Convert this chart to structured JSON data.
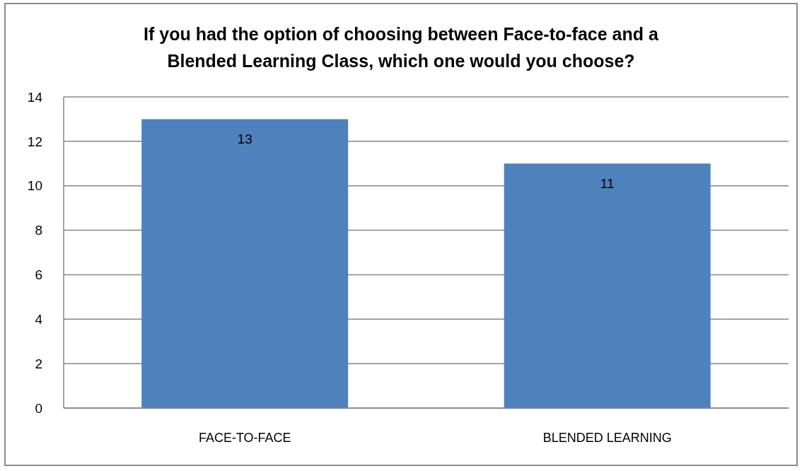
{
  "chart_data": {
    "type": "bar",
    "title": "If you had the option of choosing between Face-to-face and a Blended Learning Class, which one would you choose?",
    "categories": [
      "FACE-TO-FACE",
      "BLENDED LEARNING"
    ],
    "values": [
      13,
      11
    ],
    "color": "#4f81bd",
    "ylim": [
      0,
      14
    ],
    "yticks": [
      0,
      2,
      4,
      6,
      8,
      10,
      12,
      14
    ],
    "grid": "y",
    "data_labels": true
  }
}
